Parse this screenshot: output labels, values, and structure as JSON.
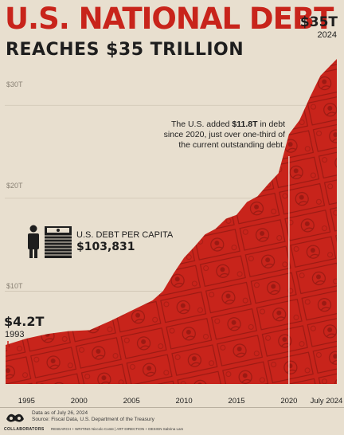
{
  "header": {
    "title": "U.S. NATIONAL DEBT",
    "subtitle": "REACHES $35 TRILLION"
  },
  "end_label": {
    "value": "$35T",
    "year": "2024"
  },
  "start_label": {
    "value": "$4.2T",
    "year": "1993"
  },
  "annotation": {
    "part1": "The U.S. added ",
    "highlight": "$11.8T",
    "part2": " in debt since 2020, just over one-third of the current outstanding debt."
  },
  "per_capita": {
    "label": "U.S. DEBT PER CAPITA",
    "value": "$103,831"
  },
  "footer": {
    "brand": "COLLABORATORS",
    "date": "Data as of July 26, 2024",
    "source": "Source: Fiscal Data, U.S. Department of the Treasury",
    "credits": "RESEARCH + WRITING Niccolo Conte  |  ART DIRECTION + DESIGN Sabrina Lam"
  },
  "colors": {
    "accent": "#c8241b",
    "accent_dark": "#8e1610",
    "ink": "#1e1e1e",
    "background": "#e8dfcf"
  },
  "chart_data": {
    "type": "area",
    "unit": "trillion USD",
    "x": [
      1993,
      1995,
      1997,
      1999,
      2001,
      2003,
      2005,
      2007,
      2008,
      2009,
      2010,
      2011,
      2012,
      2013,
      2014,
      2015,
      2016,
      2017,
      2018,
      2019,
      2020,
      2021,
      2022,
      2023,
      2024.56
    ],
    "y": [
      4.2,
      4.9,
      5.4,
      5.7,
      5.8,
      6.8,
      7.9,
      9.0,
      10.0,
      11.9,
      13.6,
      14.8,
      16.1,
      16.7,
      17.8,
      18.2,
      19.6,
      20.2,
      21.5,
      22.7,
      26.9,
      28.4,
      30.9,
      33.2,
      35.0
    ],
    "xlim": [
      1993,
      2024.56
    ],
    "ylim": [
      0,
      35
    ],
    "yticks": [
      "$10T",
      "$20T",
      "$30T"
    ],
    "ytick_values": [
      10,
      20,
      30
    ],
    "xticks": [
      "1995",
      "2000",
      "2005",
      "2010",
      "2015",
      "2020",
      "July 2024"
    ],
    "xtick_values": [
      1995,
      2000,
      2005,
      2010,
      2015,
      2020,
      2024.56
    ],
    "marker_x": 2020,
    "grid": true
  }
}
